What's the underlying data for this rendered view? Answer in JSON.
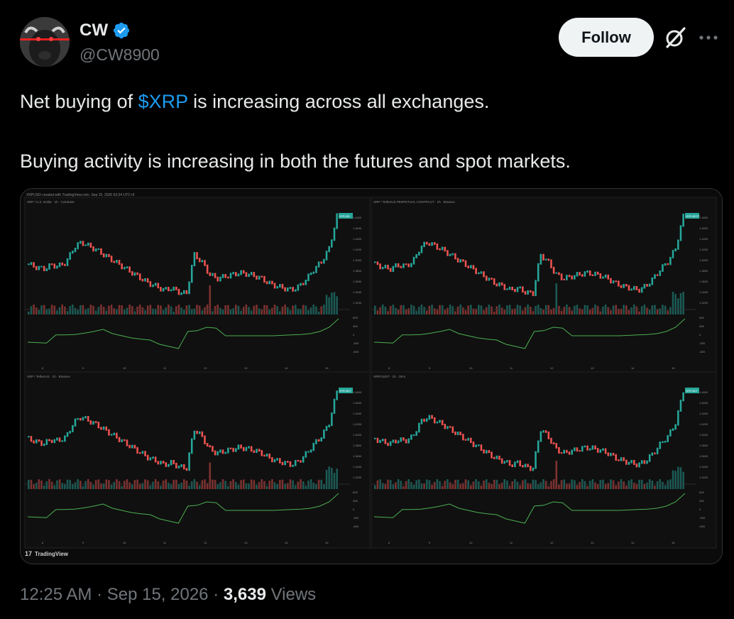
{
  "author": {
    "name": "CW",
    "handle": "@CW8900",
    "verified": true,
    "avatar_icon": "bull-avatar-icon"
  },
  "actions": {
    "follow_label": "Follow",
    "grok_icon": "grok-icon",
    "more_icon": "more-icon"
  },
  "tweet": {
    "line1_before": "Net buying of ",
    "cashtag": "$XRP",
    "line1_after": " is increasing across all exchanges.",
    "line2": "Buying activity is increasing in both the futures and spot markets."
  },
  "media": {
    "watermark": "TradingView",
    "header": "XRPUSD created with TradingView.com, Sep 15, 2026 03:34 UTC+9",
    "panels": [
      {
        "title": "XRP / U.S. Dollar · 1h · Coinbase",
        "badge": "XRPUSD"
      },
      {
        "title": "XRP / TetherUS PERPETUAL CONTRACT · 1h · Binance",
        "badge": "XRPUSDT.P"
      },
      {
        "title": "XRP / TetherUS · 1h · Binance",
        "badge": "XRPUSDT"
      },
      {
        "title": "XRP/USDT · 1h · OKX",
        "badge": "XRPUSDT"
      }
    ],
    "price_ticks": [
      "1.4800",
      "1.4600",
      "1.4400",
      "1.4200",
      "1.4000",
      "1.3800",
      "1.3600",
      "1.3400",
      "1.3200"
    ],
    "delta_ticks": [
      "60K",
      "30K",
      "0",
      "-30K",
      "-60K"
    ],
    "x_ticks": [
      "8",
      "9",
      "10",
      "11",
      "12",
      "13",
      "14",
      "15"
    ],
    "colors": {
      "up": "#26a69a",
      "down": "#ef5350",
      "cvd_up": "#4caf50",
      "cvd_down": "#e91e63"
    }
  },
  "meta": {
    "time": "12:25 AM",
    "sep1": " · ",
    "date": "Sep 15, 2026",
    "sep2": " · ",
    "views_count": "3,639",
    "views_label": " Views"
  }
}
